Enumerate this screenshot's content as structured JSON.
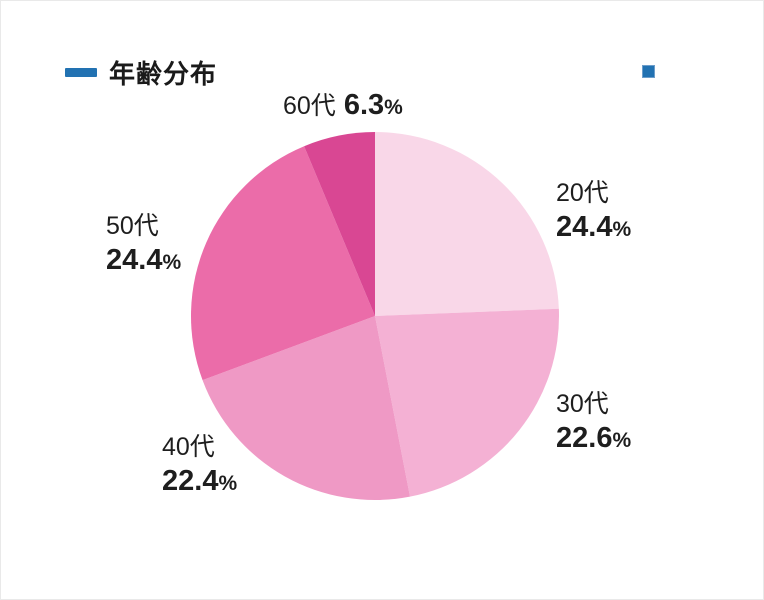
{
  "header": {
    "title": "年齢分布"
  },
  "accent_color": "#2272b2",
  "decorations": {
    "corner_square_color": "#2e74b4"
  },
  "chart_data": {
    "type": "pie",
    "title": "年齢分布",
    "unit": "%",
    "start_angle_deg": 0,
    "direction": "clockwise",
    "legend_position": "none",
    "segments": [
      {
        "label": "20代",
        "value": 24.4,
        "display": "24.4",
        "color": "#f9d7e8"
      },
      {
        "label": "30代",
        "value": 22.6,
        "display": "22.6",
        "color": "#f4b1d4"
      },
      {
        "label": "40代",
        "value": 22.4,
        "display": "22.4",
        "color": "#ef99c5"
      },
      {
        "label": "50代",
        "value": 24.4,
        "display": "24.4",
        "color": "#eb6ca9"
      },
      {
        "label": "60代",
        "value": 6.3,
        "display": "6.3",
        "color": "#d94793"
      }
    ]
  }
}
